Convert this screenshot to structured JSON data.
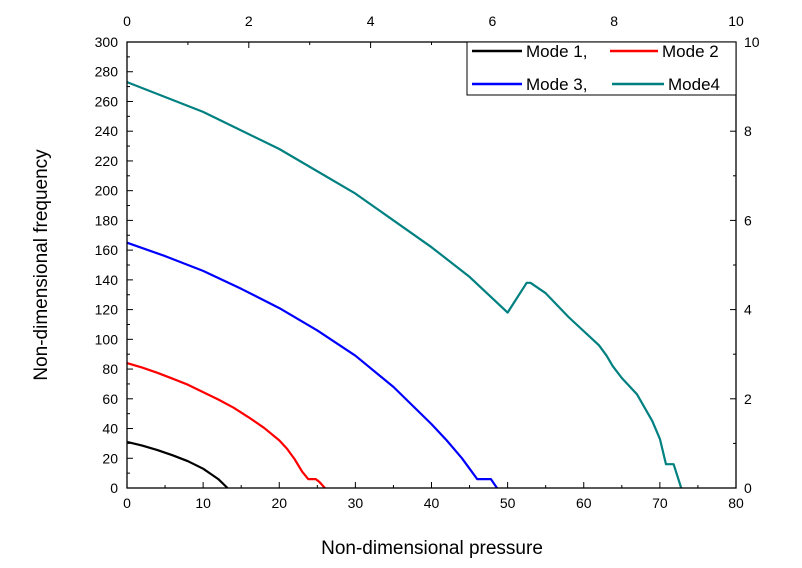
{
  "chart_data": {
    "type": "line",
    "title": "",
    "xlabel": "Non-dimensional pressure",
    "ylabel": "Non-dimensional frequency",
    "xlim": [
      0,
      80
    ],
    "ylim": [
      0,
      300
    ],
    "xticks": [
      0,
      10,
      20,
      30,
      40,
      50,
      60,
      70,
      80
    ],
    "yticks": [
      0,
      20,
      40,
      60,
      80,
      100,
      120,
      140,
      160,
      180,
      200,
      220,
      240,
      260,
      280,
      300
    ],
    "top_axis": {
      "lim": [
        0,
        10
      ],
      "ticks": [
        0,
        2,
        4,
        6,
        8,
        10
      ]
    },
    "right_axis": {
      "lim": [
        0,
        10
      ],
      "ticks": [
        0,
        2,
        4,
        6,
        8,
        10
      ]
    },
    "grid": false,
    "legend_position": "top-right",
    "series": [
      {
        "name": "Mode 1,",
        "color": "#000000",
        "x": [
          0,
          2,
          4,
          6,
          8,
          10,
          11,
          12,
          12.8,
          13.2
        ],
        "y": [
          31,
          28.5,
          25.5,
          22,
          18,
          13,
          9.5,
          6,
          2,
          0
        ]
      },
      {
        "name": "Mode 2",
        "color": "#ff0000",
        "x": [
          0,
          2,
          4,
          6,
          8,
          10,
          12,
          14,
          16,
          18,
          20,
          21,
          22,
          23,
          23.8,
          24.8,
          25.3,
          26
        ],
        "y": [
          84,
          81,
          77.5,
          73.5,
          69.5,
          64.5,
          59.5,
          54,
          47.5,
          40.5,
          32,
          26.5,
          19.5,
          11,
          6,
          6,
          4,
          0
        ]
      },
      {
        "name": "Mode 3,",
        "color": "#0000ff",
        "x": [
          0,
          5,
          10,
          15,
          20,
          25,
          30,
          35,
          40,
          42,
          44,
          45,
          46,
          46.8,
          47.8,
          48.2,
          48.6
        ],
        "y": [
          165,
          156,
          146,
          134,
          121,
          106,
          89,
          68,
          43,
          32,
          20,
          13,
          6,
          6,
          6,
          3,
          0
        ]
      },
      {
        "name": "Mode4",
        "color": "#008080",
        "x": [
          0,
          10,
          20,
          30,
          40,
          45,
          50,
          52.5,
          53,
          55,
          58,
          62,
          63,
          63.8,
          65,
          67,
          69,
          70,
          70.8,
          71.8,
          72.3,
          72.8
        ],
        "y": [
          273,
          253,
          228,
          198,
          162,
          142,
          118,
          138,
          138,
          131,
          115,
          96,
          89,
          82,
          74,
          63,
          45,
          33,
          16,
          16,
          8,
          0
        ]
      }
    ]
  }
}
